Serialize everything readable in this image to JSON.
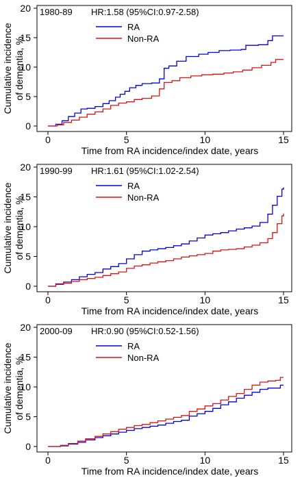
{
  "colors": {
    "ra": "#0000e0",
    "non_ra": "#e01010",
    "axis": "#000000"
  },
  "chart_data": [
    {
      "type": "line",
      "panel_label": "1980-89",
      "hr_text": "HR:1.58 (95%CI:0.97-2.58)",
      "xlabel": "Time from RA incidence/index date, years",
      "ylabel_line1": "Cumulative incidence",
      "ylabel_line2": "of dementia, %",
      "xlim": [
        0,
        15
      ],
      "ylim": [
        0,
        20
      ],
      "xticks": [
        0,
        5,
        10,
        15
      ],
      "yticks": [
        0,
        5,
        10,
        15,
        20
      ],
      "legend_position": "top-left",
      "series": [
        {
          "name": "RA",
          "color": "#0000e0",
          "x": [
            0,
            0.5,
            0.9,
            1.3,
            1.7,
            2.1,
            2.5,
            3.0,
            3.5,
            3.9,
            4.3,
            4.6,
            4.9,
            5.2,
            5.6,
            6.0,
            6.6,
            7.1,
            7.4,
            7.7,
            8.2,
            8.8,
            9.6,
            10.2,
            10.9,
            11.6,
            12.3,
            12.6,
            13.4,
            14.0,
            14.3,
            15.0
          ],
          "y": [
            0,
            0.3,
            0.9,
            1.6,
            2.2,
            2.9,
            3.0,
            3.3,
            3.8,
            4.3,
            4.9,
            5.4,
            5.9,
            6.5,
            6.9,
            7.2,
            7.3,
            8.0,
            9.8,
            10.2,
            11.0,
            11.8,
            12.2,
            12.5,
            12.8,
            12.9,
            13.0,
            13.7,
            13.8,
            14.5,
            15.3,
            15.3
          ]
        },
        {
          "name": "Non-RA",
          "color": "#e01010",
          "x": [
            0,
            0.6,
            1.0,
            1.5,
            2.0,
            2.5,
            3.0,
            3.5,
            4.0,
            4.5,
            5.0,
            5.5,
            6.0,
            6.6,
            7.1,
            7.4,
            7.9,
            8.4,
            9.1,
            9.8,
            10.5,
            11.2,
            11.8,
            12.4,
            13.0,
            13.6,
            14.2,
            14.5,
            15.0
          ],
          "y": [
            0,
            0.2,
            0.6,
            1.0,
            1.5,
            2.0,
            2.4,
            2.9,
            3.5,
            3.9,
            4.1,
            4.5,
            4.7,
            5.1,
            6.3,
            7.4,
            7.7,
            8.2,
            8.5,
            8.7,
            8.8,
            9.0,
            9.2,
            9.5,
            9.9,
            10.3,
            10.8,
            11.3,
            11.3
          ]
        }
      ]
    },
    {
      "type": "line",
      "panel_label": "1990-99",
      "hr_text": "HR:1.61 (95%CI:1.02-2.54)",
      "xlabel": "Time from RA incidence/index date, years",
      "ylabel_line1": "Cumulative incidence",
      "ylabel_line2": "of dementia, %",
      "xlim": [
        0,
        15
      ],
      "ylim": [
        0,
        20
      ],
      "xticks": [
        0,
        5,
        10,
        15
      ],
      "yticks": [
        0,
        5,
        10,
        15,
        20
      ],
      "legend_position": "top-left",
      "series": [
        {
          "name": "RA",
          "color": "#0000e0",
          "x": [
            0,
            0.5,
            1.0,
            1.5,
            2.0,
            2.5,
            3.0,
            3.5,
            4.0,
            4.5,
            5.0,
            5.5,
            6.0,
            6.5,
            7.0,
            7.5,
            8.0,
            8.5,
            9.0,
            9.5,
            10.0,
            10.5,
            11.0,
            11.5,
            12.0,
            12.5,
            13.0,
            13.5,
            14.0,
            14.3,
            14.6,
            14.9,
            15.0
          ],
          "y": [
            0,
            0.4,
            0.7,
            1.1,
            1.6,
            2.0,
            2.3,
            2.9,
            3.3,
            3.8,
            4.6,
            5.3,
            5.9,
            6.1,
            6.3,
            6.5,
            6.8,
            7.1,
            7.6,
            8.1,
            8.6,
            8.8,
            9.0,
            9.3,
            9.6,
            9.8,
            10.1,
            10.7,
            12.1,
            13.6,
            15.1,
            16.3,
            16.6
          ]
        },
        {
          "name": "Non-RA",
          "color": "#e01010",
          "x": [
            0,
            0.5,
            1.0,
            1.5,
            2.0,
            2.5,
            3.0,
            3.5,
            4.0,
            4.5,
            5.0,
            5.5,
            6.0,
            6.5,
            7.0,
            7.5,
            8.0,
            8.5,
            9.0,
            9.5,
            10.0,
            10.5,
            11.0,
            11.5,
            12.0,
            12.5,
            13.0,
            13.5,
            14.0,
            14.3,
            14.6,
            14.9,
            15.0
          ],
          "y": [
            0,
            0.3,
            0.5,
            0.8,
            1.1,
            1.3,
            1.5,
            1.8,
            2.1,
            2.4,
            3.0,
            3.4,
            3.6,
            3.9,
            4.1,
            4.3,
            4.6,
            4.9,
            5.1,
            5.3,
            5.5,
            5.9,
            6.1,
            6.2,
            6.3,
            6.6,
            6.9,
            7.3,
            8.0,
            9.0,
            10.5,
            11.8,
            12.2
          ]
        }
      ]
    },
    {
      "type": "line",
      "panel_label": "2000-09",
      "hr_text": "HR:0.90 (95%CI:0.52-1.56)",
      "xlabel": "Time from RA incidence/index date, years",
      "ylabel_line1": "Cumulative incidence",
      "ylabel_line2": "of dementia, %",
      "xlim": [
        0,
        15
      ],
      "ylim": [
        0,
        20
      ],
      "xticks": [
        0,
        5,
        10,
        15
      ],
      "yticks": [
        0,
        5,
        10,
        15,
        20
      ],
      "legend_position": "top-left",
      "series": [
        {
          "name": "RA",
          "color": "#0000e0",
          "x": [
            0,
            0.8,
            1.3,
            1.9,
            2.4,
            3.0,
            3.5,
            4.0,
            4.5,
            5.0,
            5.5,
            6.0,
            6.5,
            7.0,
            7.5,
            8.0,
            8.5,
            9.0,
            9.5,
            10.0,
            10.5,
            11.0,
            11.5,
            12.0,
            12.5,
            13.0,
            13.5,
            14.0,
            14.5,
            14.8,
            15.0
          ],
          "y": [
            0,
            0.1,
            0.4,
            0.7,
            1.1,
            1.5,
            1.8,
            2.1,
            2.4,
            2.7,
            3.0,
            3.2,
            3.4,
            3.6,
            3.9,
            4.2,
            4.4,
            5.1,
            5.5,
            5.9,
            6.4,
            7.0,
            7.5,
            8.1,
            8.6,
            9.1,
            9.6,
            9.8,
            9.8,
            10.3,
            10.3
          ]
        },
        {
          "name": "Non-RA",
          "color": "#e01010",
          "x": [
            0,
            0.8,
            1.3,
            1.9,
            2.4,
            3.0,
            3.5,
            4.0,
            4.5,
            5.0,
            5.5,
            6.0,
            6.5,
            7.0,
            7.5,
            8.0,
            8.5,
            9.0,
            9.5,
            10.0,
            10.5,
            11.0,
            11.5,
            12.0,
            12.5,
            13.0,
            13.5,
            14.0,
            14.5,
            14.8,
            15.0
          ],
          "y": [
            0,
            0.2,
            0.5,
            0.9,
            1.3,
            1.7,
            2.1,
            2.5,
            2.9,
            3.2,
            3.5,
            3.7,
            4.0,
            4.3,
            4.6,
            4.9,
            5.2,
            5.9,
            6.3,
            6.8,
            7.2,
            7.8,
            8.4,
            8.9,
            9.6,
            10.3,
            10.8,
            11.0,
            11.1,
            11.6,
            11.6
          ]
        }
      ]
    }
  ]
}
